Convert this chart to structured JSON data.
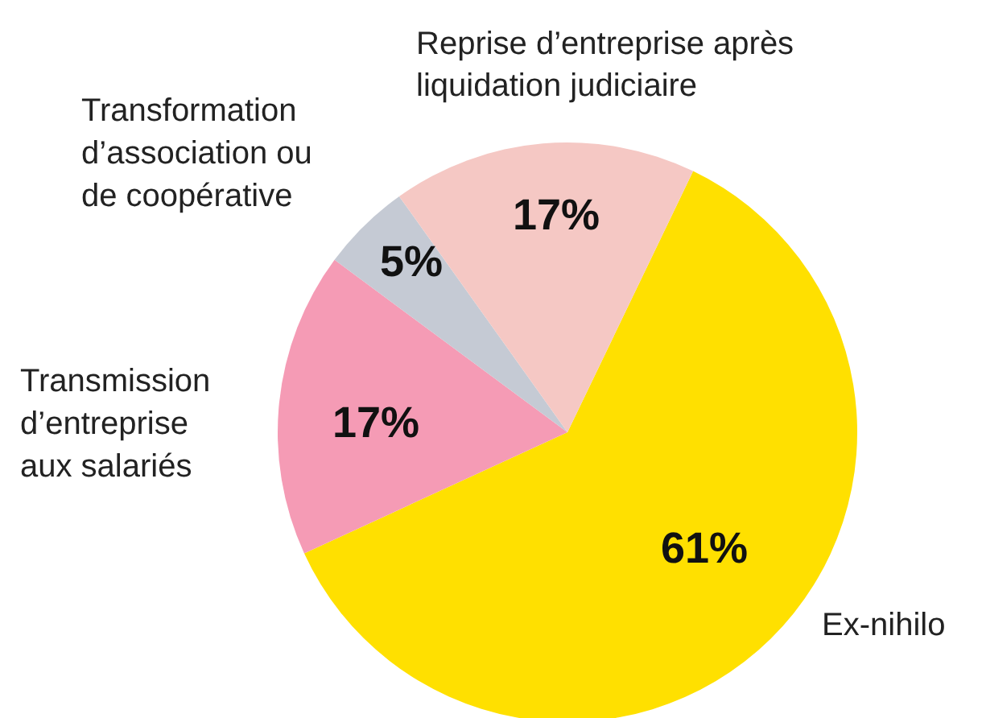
{
  "chart_data": {
    "type": "pie",
    "categories": [
      "Ex-nihilo",
      "Transmission d’entreprise aux salariés",
      "Transformation d’association ou de coopérative",
      "Reprise d’entreprise après liquidation judiciaire"
    ],
    "values": [
      61,
      17,
      5,
      17
    ],
    "colors": [
      "#ffe000",
      "#f59bb5",
      "#c5cad4",
      "#f5c8c4"
    ],
    "value_labels": [
      "61%",
      "17%",
      "5%",
      "17%"
    ]
  }
}
